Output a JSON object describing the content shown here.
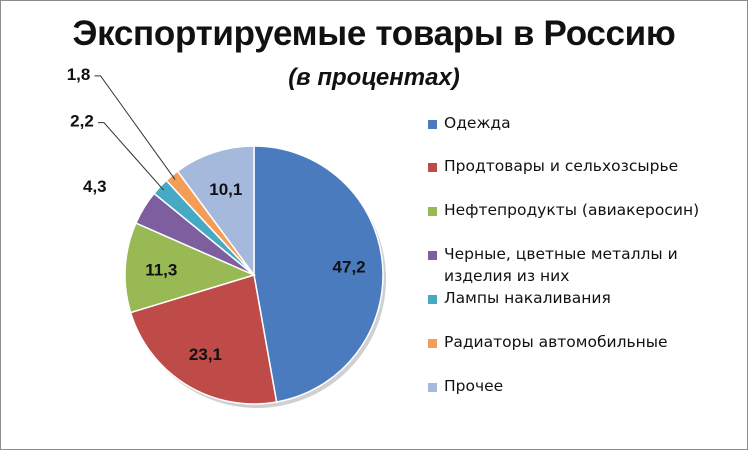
{
  "chart_data": {
    "type": "pie",
    "title": "Экспортируемые товары в Россию",
    "subtitle": "(в процентах)",
    "legend_position": "right",
    "slices": [
      {
        "name": "Одежда",
        "value": 47.2,
        "label": "47,2",
        "color": "#4a7bbf"
      },
      {
        "name": "Продтовары и сельхозсырье",
        "value": 23.1,
        "label": "23,1",
        "color": "#be4b48"
      },
      {
        "name": "Нефтепродукты (авиакеросин)",
        "value": 11.3,
        "label": "11,3",
        "color": "#98b954"
      },
      {
        "name": "Черные, цветные металлы и изделия из них",
        "value": 4.3,
        "label": "4,3",
        "color": "#7d5fa0"
      },
      {
        "name": "Лампы накаливания",
        "value": 2.2,
        "label": "2,2",
        "color": "#46aac5"
      },
      {
        "name": "Радиаторы автомобильные",
        "value": 1.8,
        "label": "1,8",
        "color": "#f59d56"
      },
      {
        "name": "Прочее",
        "value": 10.1,
        "label": "10,1",
        "color": "#a5b9dd"
      }
    ]
  }
}
